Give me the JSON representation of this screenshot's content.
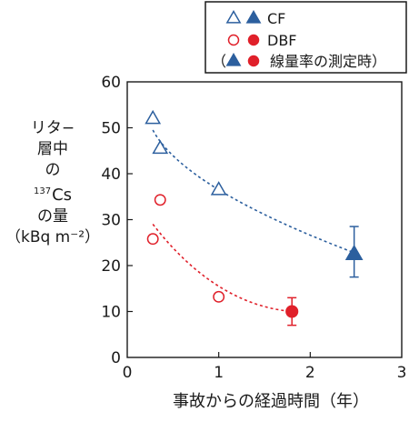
{
  "chart_data": {
    "type": "scatter",
    "xlabel": "事故からの経過時間（年）",
    "ylabel": {
      "line1": "リタ−",
      "line2": "層中",
      "line3": "の",
      "line4_sup": "137",
      "line4_main": "Cs",
      "line5": "の量",
      "line6": "（kBq m⁻²）"
    },
    "xlim": [
      0,
      3
    ],
    "ylim": [
      0,
      60
    ],
    "xticks": [
      "0",
      "1",
      "2",
      "3"
    ],
    "yticks": [
      "0",
      "10",
      "20",
      "30",
      "40",
      "50",
      "60"
    ],
    "grid": false,
    "legend": {
      "placement": "top-right",
      "entries": [
        {
          "text": "CF",
          "markers": [
            "open-triangle",
            "filled-triangle"
          ],
          "color": "#2c5f9e"
        },
        {
          "text": "DBF",
          "markers": [
            "open-circle",
            "filled-circle"
          ],
          "color": "#e0202a"
        },
        {
          "text": "（　　　線量率の測定時）",
          "markers": [
            "filled-triangle",
            "filled-circle"
          ],
          "colors": [
            "#2c5f9e",
            "#e0202a"
          ]
        }
      ]
    },
    "series": [
      {
        "name": "CF",
        "color": "#2c5f9e",
        "marker": "triangle",
        "points": [
          {
            "x": 0.28,
            "y": 52,
            "filled": false
          },
          {
            "x": 0.36,
            "y": 45.5,
            "filled": false
          },
          {
            "x": 1.0,
            "y": 36.5,
            "filled": false
          },
          {
            "x": 2.48,
            "y": 22.5,
            "filled": true,
            "err": [
              17.5,
              28.5
            ]
          }
        ],
        "trend": [
          [
            0.28,
            49.5
          ],
          [
            1.0,
            36.5
          ],
          [
            2.48,
            22.8
          ]
        ]
      },
      {
        "name": "DBF",
        "color": "#e0202a",
        "marker": "circle",
        "points": [
          {
            "x": 0.28,
            "y": 25.8,
            "filled": false
          },
          {
            "x": 0.36,
            "y": 34.3,
            "filled": false
          },
          {
            "x": 1.0,
            "y": 13.2,
            "filled": false
          },
          {
            "x": 1.8,
            "y": 10.0,
            "filled": true,
            "err": [
              7.0,
              13.0
            ]
          }
        ],
        "trend": [
          [
            0.28,
            29.0
          ],
          [
            1.0,
            15.5
          ],
          [
            1.8,
            10.0
          ]
        ]
      }
    ]
  }
}
